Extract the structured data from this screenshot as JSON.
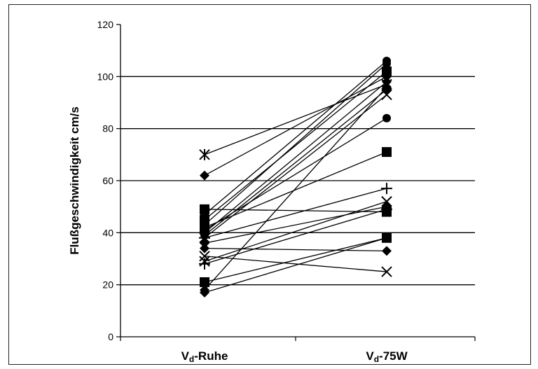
{
  "chart_data": {
    "type": "line",
    "categories": [
      {
        "main": "V",
        "sub": "d",
        "rest": "-Ruhe"
      },
      {
        "main": "V",
        "sub": "d",
        "rest": "-75W"
      }
    ],
    "ylabel": "Flußgeschwindigkeit cm/s",
    "ylim": [
      0,
      120
    ],
    "yticks": [
      0,
      20,
      40,
      60,
      80,
      100,
      120
    ],
    "grid": "horizontal",
    "series": [
      {
        "marker": "star",
        "values": [
          70,
          97
        ]
      },
      {
        "marker": "diamond",
        "values": [
          62,
          100
        ]
      },
      {
        "marker": "square",
        "values": [
          49,
          48
        ]
      },
      {
        "marker": "circle",
        "values": [
          47,
          106
        ]
      },
      {
        "marker": "square",
        "values": [
          45,
          102
        ]
      },
      {
        "marker": "circle",
        "values": [
          43,
          105
        ]
      },
      {
        "marker": "square",
        "values": [
          42,
          71
        ]
      },
      {
        "marker": "circle",
        "values": [
          41,
          84
        ]
      },
      {
        "marker": "diamond",
        "values": [
          40,
          98
        ]
      },
      {
        "marker": "circle",
        "values": [
          39,
          95
        ]
      },
      {
        "marker": "x",
        "values": [
          38,
          93
        ]
      },
      {
        "marker": "plus",
        "values": [
          38,
          57
        ]
      },
      {
        "marker": "diamond",
        "values": [
          36,
          50
        ]
      },
      {
        "marker": "diamond",
        "values": [
          34,
          33
        ]
      },
      {
        "marker": "x",
        "values": [
          31,
          25
        ]
      },
      {
        "marker": "x",
        "values": [
          29,
          52
        ]
      },
      {
        "marker": "plus",
        "values": [
          28,
          49
        ]
      },
      {
        "marker": "square",
        "values": [
          21,
          38
        ]
      },
      {
        "marker": "diamond",
        "values": [
          18,
          96
        ]
      },
      {
        "marker": "diamond",
        "values": [
          17,
          38
        ]
      }
    ]
  }
}
